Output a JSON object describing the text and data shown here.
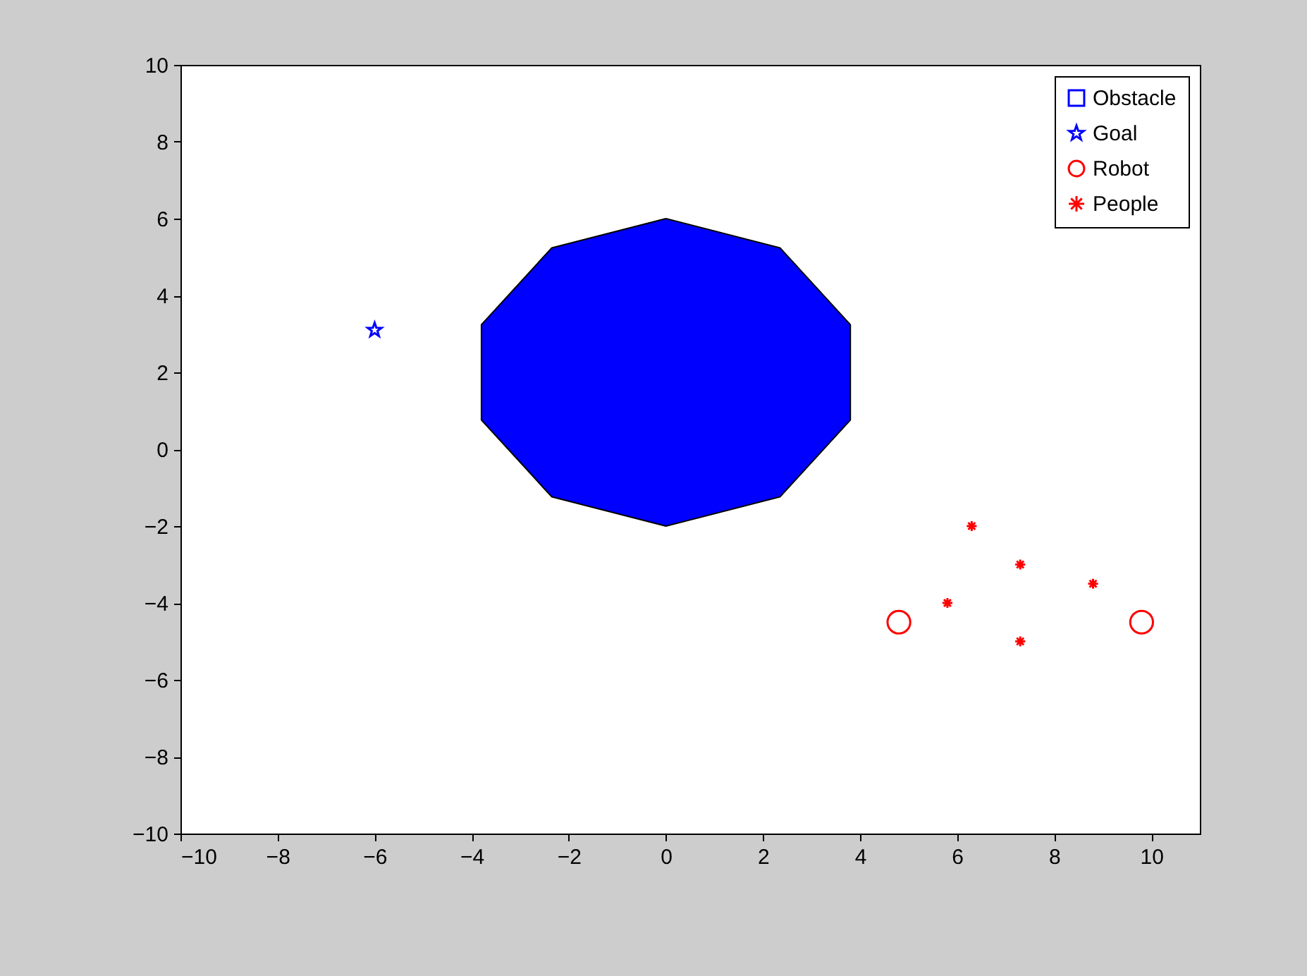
{
  "chart_data": {
    "type": "scatter",
    "xlim": [
      -10,
      11
    ],
    "ylim": [
      -10,
      10
    ],
    "xticks": [
      -10,
      -8,
      -6,
      -4,
      -2,
      0,
      2,
      4,
      6,
      8,
      10
    ],
    "yticks": [
      -10,
      -8,
      -6,
      -4,
      -2,
      0,
      2,
      4,
      6,
      8,
      10
    ],
    "grid": false,
    "legend": "top right",
    "series": [
      {
        "name": "Obstacle",
        "type": "area",
        "color": "#0000ff",
        "x": [
          0,
          2.35,
          3.8,
          3.8,
          2.35,
          0,
          -2.35,
          -3.8,
          -3.8,
          -2.35,
          0
        ],
        "values": [
          6,
          5.24,
          3.24,
          0.76,
          -1.24,
          -2,
          -1.24,
          0.76,
          3.24,
          5.24,
          6
        ]
      },
      {
        "name": "Goal",
        "type": "scatter",
        "color": "#0000ff",
        "marker": "star",
        "x": [
          -6
        ],
        "values": [
          3.1
        ]
      },
      {
        "name": "Robot",
        "type": "scatter",
        "color": "#ff0000",
        "marker": "circle",
        "x": [
          4.8,
          9.8
        ],
        "values": [
          -4.5,
          -4.5
        ]
      },
      {
        "name": "People",
        "type": "scatter",
        "color": "#ff0000",
        "marker": "cross",
        "x": [
          6.3,
          7.3,
          5.8,
          8.8,
          7.3
        ],
        "values": [
          -2,
          -3,
          -4,
          -3.5,
          -5
        ]
      }
    ]
  }
}
